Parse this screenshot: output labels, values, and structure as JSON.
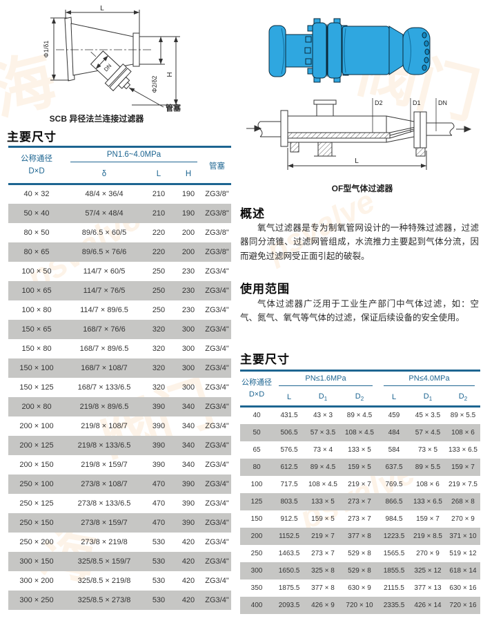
{
  "drawings": {
    "scb": {
      "caption": "SCB 异径法兰连接过滤器",
      "labels": {
        "L": "L",
        "phi1": "Φ1/δ1",
        "phi2": "Φ2/δ2",
        "H": "H",
        "DN": "DN",
        "plug": "管塞"
      }
    },
    "of": {
      "caption": "OF型气体过滤器",
      "labels": {
        "D2": "D2",
        "D1": "D1",
        "DN": "DN",
        "L": "L"
      }
    }
  },
  "sections": {
    "dim_left": {
      "title": "主要尺寸"
    },
    "overview": {
      "title": "概述",
      "body": "氧气过滤器是专为制氧管网设计的一种特殊过滤器，过滤器同分流锥、过滤网管组成，水流推力主要起到气体分流，因而避免过滤网受正面引起的破裂。"
    },
    "usage": {
      "title": "使用范围",
      "body": "气体过滤器广泛用于工业生产部门中气体过滤，如：空气、氮气、氧气等气体的过滤，保证后续设备的安全使用。"
    },
    "dim_right": {
      "title": "主要尺寸"
    }
  },
  "left_table": {
    "group": "PN1.6~4.0MPa",
    "headers": {
      "dn1": "公称通径",
      "dn2": "D×D",
      "delta": "δ",
      "L": "L",
      "H": "H",
      "plug": "管塞"
    },
    "rows": [
      [
        "40 × 32",
        "48/4 × 36/4",
        "210",
        "190",
        "ZG3/8\""
      ],
      [
        "50 × 40",
        "57/4 × 48/4",
        "210",
        "190",
        "ZG3/8\""
      ],
      [
        "80 × 50",
        "89/6.5 × 60/5",
        "220",
        "200",
        "ZG3/8\""
      ],
      [
        "80 × 65",
        "89/6.5 × 76/6",
        "220",
        "200",
        "ZG3/8\""
      ],
      [
        "100 × 50",
        "114/7 × 60/5",
        "250",
        "230",
        "ZG3/4\""
      ],
      [
        "100 × 65",
        "114/7 × 76/5",
        "250",
        "230",
        "ZG3/4\""
      ],
      [
        "100 × 80",
        "114/7 × 89/6.5",
        "250",
        "230",
        "ZG3/4\""
      ],
      [
        "150 × 65",
        "168/7 × 76/6",
        "320",
        "300",
        "ZG3/4\""
      ],
      [
        "150 × 80",
        "168/7 × 89/6.5",
        "320",
        "300",
        "ZG3/4\""
      ],
      [
        "150 × 100",
        "168/7 × 108/7",
        "320",
        "300",
        "ZG3/4\""
      ],
      [
        "150 × 125",
        "168/7 × 133/6.5",
        "320",
        "300",
        "ZG3/4\""
      ],
      [
        "200 × 80",
        "219/8 × 89/6.5",
        "390",
        "340",
        "ZG3/4\""
      ],
      [
        "200 × 100",
        "219/8 × 108/7",
        "390",
        "340",
        "ZG3/4\""
      ],
      [
        "200 × 125",
        "219/8 × 133/6.5",
        "390",
        "340",
        "ZG3/4\""
      ],
      [
        "200 × 150",
        "219/8 × 159/7",
        "390",
        "340",
        "ZG3/4\""
      ],
      [
        "250 × 100",
        "273/8 × 108/7",
        "470",
        "390",
        "ZG3/4\""
      ],
      [
        "250 × 125",
        "273/8 × 133/6.5",
        "470",
        "390",
        "ZG3/4\""
      ],
      [
        "250 × 150",
        "273/8 × 159/7",
        "470",
        "390",
        "ZG3/4\""
      ],
      [
        "250 × 200",
        "273/8 × 219/8",
        "530",
        "420",
        "ZG3/4\""
      ],
      [
        "300 × 150",
        "325/8.5 × 159/7",
        "530",
        "420",
        "ZG3/4\""
      ],
      [
        "300 × 200",
        "325/8.5 × 219/8",
        "530",
        "420",
        "ZG3/4\""
      ],
      [
        "300 × 250",
        "325/8.5 × 273/8",
        "530",
        "420",
        "ZG3/4\""
      ]
    ]
  },
  "right_table": {
    "groups": {
      "g1": "PN≤1.6MPa",
      "g2": "PN≤4.0MPa"
    },
    "headers": {
      "dn1": "公称通径",
      "dn2": "D×D",
      "L": "L",
      "d": "D",
      "s1": "1",
      "s2": "2"
    },
    "rows": [
      [
        "40",
        "431.5",
        "43 × 3",
        "89 × 4.5",
        "459",
        "45 × 3.5",
        "89 × 5.5"
      ],
      [
        "50",
        "506.5",
        "57 × 3.5",
        "108 × 4.5",
        "484",
        "57 × 4.5",
        "108 × 6"
      ],
      [
        "65",
        "576.5",
        "73 × 4",
        "133 × 5",
        "584",
        "73 × 5",
        "133 × 6.5"
      ],
      [
        "80",
        "612.5",
        "89 × 4.5",
        "159 × 5",
        "637.5",
        "89 × 5.5",
        "159 × 7"
      ],
      [
        "100",
        "717.5",
        "108 × 4.5",
        "219 × 7",
        "769.5",
        "108 × 6",
        "219 × 7.5"
      ],
      [
        "125",
        "803.5",
        "133 × 5",
        "273 × 7",
        "866.5",
        "133 × 6.5",
        "268 × 8"
      ],
      [
        "150",
        "912.5",
        "159 × 5",
        "273 × 7",
        "984.5",
        "159 × 7",
        "270 × 9"
      ],
      [
        "200",
        "1152.5",
        "219 × 7",
        "377 × 8",
        "1223.5",
        "219 × 8.5",
        "371 × 10"
      ],
      [
        "250",
        "1463.5",
        "273 × 7",
        "529 × 8",
        "1565.5",
        "270 × 9",
        "519 × 12"
      ],
      [
        "300",
        "1650.5",
        "325 × 8",
        "529 × 8",
        "1855.5",
        "325 × 12",
        "618 × 14"
      ],
      [
        "350",
        "1875.5",
        "377 × 8",
        "630 × 9",
        "2115.5",
        "377 × 13",
        "630 × 16"
      ],
      [
        "400",
        "2093.5",
        "426 × 9",
        "720 × 10",
        "2335.5",
        "426 × 14",
        "720 × 16"
      ]
    ]
  },
  "colors": {
    "accent": "#1d6591",
    "row_alt": "#c6c6c4",
    "device_blue": "#2fa7e0"
  },
  "watermark": {
    "latin": "psvalve",
    "cjk1": "阀门",
    "cjk2": "海"
  }
}
